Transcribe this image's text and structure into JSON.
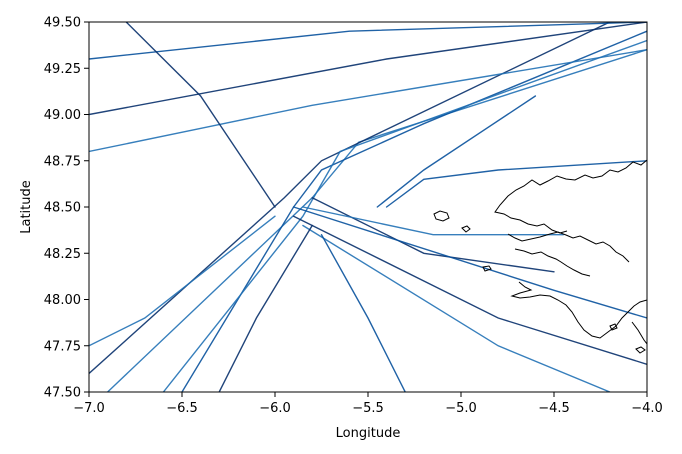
{
  "chart_data": {
    "type": "line",
    "title": "",
    "xlabel": "Longitude",
    "ylabel": "Latitude",
    "xlim": [
      -7.0,
      -4.0
    ],
    "ylim": [
      47.5,
      49.5
    ],
    "x_ticks": [
      -7.0,
      -6.5,
      -6.0,
      -5.5,
      -5.0,
      -4.5,
      -4.0
    ],
    "x_tick_labels": [
      "−7.0",
      "−6.5",
      "−6.0",
      "−5.5",
      "−5.0",
      "−4.5",
      "−4.0"
    ],
    "y_ticks": [
      47.5,
      47.75,
      48.0,
      48.25,
      48.5,
      48.75,
      49.0,
      49.25,
      49.5
    ],
    "y_tick_labels": [
      "47.50",
      "47.75",
      "48.00",
      "48.25",
      "48.50",
      "48.75",
      "49.00",
      "49.25",
      "49.50"
    ],
    "grid": false,
    "legend": "none",
    "colormap": [
      "#c6dbef",
      "#6baed6",
      "#2171b5",
      "#08519c",
      "#08306b"
    ],
    "series": [
      {
        "values": [
          [
            -6.9,
            47.5
          ],
          [
            -5.8,
            48.55
          ],
          [
            -5.55,
            48.85
          ],
          [
            -4.0,
            49.35
          ]
        ]
      },
      {
        "values": [
          [
            -6.5,
            47.5
          ],
          [
            -5.9,
            48.5
          ],
          [
            -5.75,
            48.7
          ],
          [
            -5.2,
            48.95
          ],
          [
            -4.0,
            49.45
          ]
        ]
      },
      {
        "values": [
          [
            -7.0,
            47.6
          ],
          [
            -5.95,
            48.55
          ],
          [
            -5.75,
            48.75
          ],
          [
            -4.2,
            49.5
          ]
        ]
      },
      {
        "values": [
          [
            -6.6,
            47.5
          ],
          [
            -5.85,
            48.45
          ],
          [
            -5.65,
            48.8
          ],
          [
            -4.0,
            49.4
          ]
        ]
      },
      {
        "values": [
          [
            -7.0,
            49.3
          ],
          [
            -5.6,
            49.45
          ],
          [
            -4.0,
            49.5
          ]
        ]
      },
      {
        "values": [
          [
            -7.0,
            49.0
          ],
          [
            -5.4,
            49.3
          ],
          [
            -4.0,
            49.5
          ]
        ]
      },
      {
        "values": [
          [
            -7.0,
            48.8
          ],
          [
            -5.8,
            49.05
          ],
          [
            -4.0,
            49.35
          ]
        ]
      },
      {
        "values": [
          [
            -5.45,
            48.5
          ],
          [
            -5.2,
            48.7
          ],
          [
            -4.6,
            49.1
          ]
        ]
      },
      {
        "values": [
          [
            -5.8,
            48.55
          ],
          [
            -5.2,
            48.25
          ],
          [
            -4.5,
            48.15
          ]
        ]
      },
      {
        "values": [
          [
            -5.85,
            48.5
          ],
          [
            -5.15,
            48.35
          ],
          [
            -4.45,
            48.35
          ]
        ]
      },
      {
        "values": [
          [
            -5.9,
            48.5
          ],
          [
            -4.5,
            48.05
          ],
          [
            -4.0,
            47.9
          ]
        ]
      },
      {
        "values": [
          [
            -5.9,
            48.45
          ],
          [
            -4.8,
            47.9
          ],
          [
            -4.0,
            47.65
          ]
        ]
      },
      {
        "values": [
          [
            -5.85,
            48.4
          ],
          [
            -4.8,
            47.75
          ],
          [
            -4.2,
            47.5
          ]
        ]
      },
      {
        "values": [
          [
            -5.4,
            48.5
          ],
          [
            -5.2,
            48.65
          ],
          [
            -4.8,
            48.7
          ],
          [
            -4.0,
            48.75
          ]
        ]
      },
      {
        "values": [
          [
            -6.0,
            48.5
          ],
          [
            -6.4,
            49.1
          ],
          [
            -6.8,
            49.5
          ]
        ]
      },
      {
        "values": [
          [
            -6.0,
            48.45
          ],
          [
            -6.7,
            47.9
          ],
          [
            -7.0,
            47.75
          ]
        ]
      },
      {
        "values": [
          [
            -5.75,
            48.35
          ],
          [
            -5.5,
            47.9
          ],
          [
            -5.3,
            47.5
          ]
        ]
      },
      {
        "values": [
          [
            -5.8,
            48.4
          ],
          [
            -6.1,
            47.9
          ],
          [
            -6.3,
            47.5
          ]
        ]
      }
    ]
  }
}
